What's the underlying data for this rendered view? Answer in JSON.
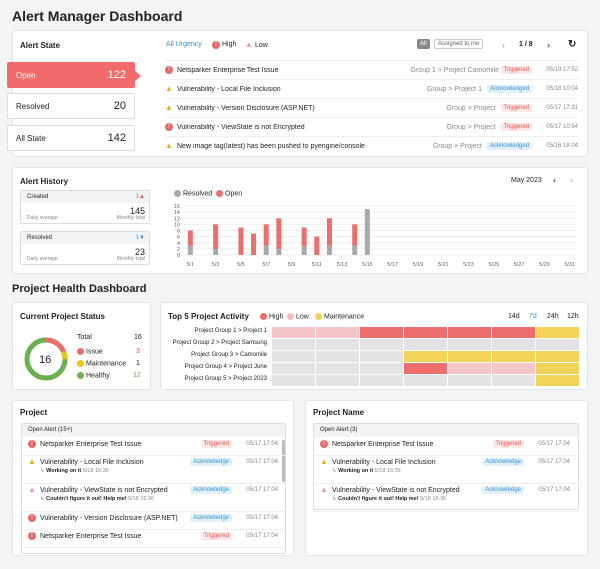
{
  "title": "Alert Manager Dashboard",
  "alert_state": {
    "title": "Alert State",
    "filters": [
      "All Urgency",
      "High",
      "Low"
    ],
    "toggle": [
      "All",
      "Assigned to me"
    ],
    "pager": "1 / 8",
    "states": [
      {
        "label": "Open",
        "count": "122"
      },
      {
        "label": "Resolved",
        "count": "20"
      },
      {
        "label": "All State",
        "count": "142"
      }
    ],
    "alerts": [
      {
        "title": "Netsparker Enterprise Test Issue",
        "icon": "error-icon",
        "project": "Group 1 > Project Camomile",
        "status": "Triggered",
        "date": "05/19 17:52"
      },
      {
        "title": "Vulnerability - Local File Inclusion",
        "icon": "warning-icon",
        "project": "Group > Project 1",
        "status": "Acknowledged",
        "date": "05/18 10:04"
      },
      {
        "title": "Vulnerability - Version Disclosure (ASP.NET)",
        "icon": "warning-icon",
        "project": "Group > Project",
        "status": "Triggered",
        "date": "05/17 17:31"
      },
      {
        "title": "Vulnerability - ViewState is not Encrypted",
        "icon": "error-icon",
        "project": "Group > Project",
        "status": "Triggered",
        "date": "05/17 10:54"
      },
      {
        "title": "New image tag(latest) has been pushed to pyengine/console",
        "icon": "warning-icon",
        "project": "Group > Project",
        "status": "Acknowledged",
        "date": "05/16 18:04"
      }
    ]
  },
  "alert_history": {
    "title": "Alert History",
    "month": "May 2023",
    "created": {
      "label": "Created",
      "change": "1",
      "avg_label": "Daily average",
      "avg": "145",
      "total_label": "Monthly total"
    },
    "resolved": {
      "label": "Resolved",
      "change": "1",
      "avg_label": "Daily average",
      "avg": "23",
      "total_label": "Monthly total"
    },
    "legend": [
      "Resolved",
      "Open"
    ]
  },
  "chart_data": {
    "type": "bar",
    "x": [
      "5/1",
      "5/2",
      "5/3",
      "5/4",
      "5/5",
      "5/6",
      "5/7",
      "5/8",
      "5/9",
      "5/10",
      "5/11",
      "5/12",
      "5/13",
      "5/14",
      "5/15"
    ],
    "xticks": [
      "5/1",
      "5/3",
      "5/5",
      "5/7",
      "5/9",
      "5/11",
      "5/13",
      "5/15",
      "5/17",
      "5/19",
      "5/21",
      "5/23",
      "5/25",
      "5/27",
      "5/29",
      "5/31"
    ],
    "series": [
      {
        "name": "Resolved",
        "values": [
          3,
          0,
          2,
          0,
          0,
          0,
          3,
          2,
          0,
          3,
          0,
          3,
          0,
          3,
          15
        ]
      },
      {
        "name": "Open",
        "values": [
          5,
          0,
          8,
          0,
          9,
          7,
          7,
          10,
          0,
          6,
          6,
          9,
          0,
          7,
          0
        ]
      }
    ],
    "yticks": [
      0,
      2,
      4,
      6,
      8,
      10,
      12,
      14,
      16
    ],
    "ylim": [
      0,
      16
    ],
    "colors": {
      "Resolved": "#a8a9ad",
      "Open": "#ee6e6e"
    }
  },
  "project_health": {
    "title": "Project Health Dashboard",
    "status": {
      "title": "Current Project Status",
      "total_label": "Total",
      "total": "16",
      "issue_label": "Issue",
      "issue": "3",
      "maint_label": "Maintenance",
      "maint": "1",
      "healthy_label": "Healthy",
      "healthy": "12",
      "center": "16"
    },
    "top5": {
      "title": "Top 5 Project Activity",
      "legend": [
        "High",
        "Low",
        "Maintenance"
      ],
      "ranges": [
        "14d",
        "7d",
        "24h",
        "12h"
      ],
      "rows": [
        "Project Group 1 > Project 1",
        "Project Group 2 > Project Samsung",
        "Project Group 3 > Camomile",
        "Project Group 4 > Project June",
        "Project Group 5 > Project 2023"
      ],
      "cells": [
        [
          "l",
          "l",
          "h",
          "h",
          "h",
          "h",
          "m"
        ],
        [
          "g",
          "g",
          "g",
          "g",
          "g",
          "g",
          "g"
        ],
        [
          "g",
          "g",
          "g",
          "m",
          "m",
          "m",
          "m"
        ],
        [
          "g",
          "g",
          "g",
          "h",
          "l",
          "l",
          "m"
        ],
        [
          "g",
          "g",
          "g",
          "g",
          "g",
          "g",
          "m"
        ]
      ]
    }
  },
  "project": {
    "title": "Project",
    "sub": "Open Alert (15+)",
    "items": [
      {
        "title": "Netsparker Enterprise Test Issue",
        "icon": "error-icon",
        "status": "Triggered",
        "date": "05/17 17:04",
        "note": "",
        "note_date": ""
      },
      {
        "title": "Vulnerability - Local File Inclusion",
        "icon": "warning-icon",
        "status": "Acknowledge",
        "date": "05/17 17:04",
        "note": "Working on it",
        "note_date": "5/18 16:36"
      },
      {
        "title": "Vulnerability - ViewState is not Encrypted",
        "icon": "alert-icon",
        "status": "Acknowledge",
        "date": "05/17 17:04",
        "note": "Couldn't figure it out! Help me!",
        "note_date": "5/18 16:36"
      },
      {
        "title": "Vulnerability - Version Disclosure (ASP.NET)",
        "icon": "error-icon",
        "status": "Acknowledge",
        "date": "05/17 17:04",
        "note": "",
        "note_date": ""
      },
      {
        "title": "Netsparker Enterprise Test Issue",
        "icon": "error-icon",
        "status": "Triggered",
        "date": "05/17 17:04",
        "note": "",
        "note_date": ""
      }
    ]
  },
  "project_name": {
    "title": "Project Name",
    "sub": "Open Alert (3)",
    "items": [
      {
        "title": "Netsparker Enterprise Test Issue",
        "icon": "error-icon",
        "status": "Triggered",
        "date": "05/17 17:04",
        "note": "",
        "note_date": ""
      },
      {
        "title": "Vulnerability - Local File Inclusion",
        "icon": "warning-icon",
        "status": "Acknowledge",
        "date": "05/17 17:04",
        "note": "Working on it",
        "note_date": "5/18 16:36"
      },
      {
        "title": "Vulnerability - ViewState is not Encrypted",
        "icon": "alert-icon",
        "status": "Acknowledge",
        "date": "05/17 17:04",
        "note": "Couldn't figure it out! Help me!",
        "note_date": "5/18 16:36"
      }
    ]
  }
}
